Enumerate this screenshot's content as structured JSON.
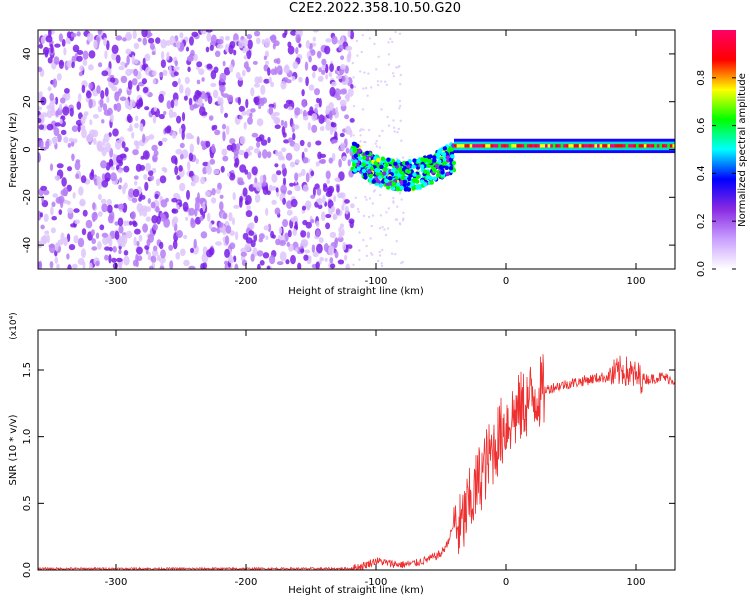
{
  "title": "C2E2.2022.358.10.50.G20",
  "chart_data": [
    {
      "type": "heatmap",
      "xlabel": "Height of straight line (km)",
      "ylabel": "Frequency (Hz)",
      "xlim": [
        -360,
        130
      ],
      "ylim": [
        -50,
        50
      ],
      "x_ticks": [
        -300,
        -200,
        -100,
        0,
        100
      ],
      "y_ticks": [
        -40,
        -20,
        0,
        20,
        40
      ],
      "colorbar": {
        "label": "Normalized spectral amplitude",
        "range": [
          0.0,
          1.0
        ],
        "ticks": [
          "0.0",
          "0.2",
          "0.4",
          "0.6",
          "0.8"
        ],
        "colors": [
          "#ffffff",
          "#c9a0ff",
          "#8a2be2",
          "#0000ff",
          "#00ffff",
          "#00ff00",
          "#ffff00",
          "#ff0000",
          "#ff0066"
        ]
      },
      "regions": [
        {
          "x": [
            -360,
            -118
          ],
          "freq": [
            -50,
            50
          ],
          "level": 0.1,
          "pattern": "noise"
        },
        {
          "x": [
            -118,
            -40
          ],
          "freq": [
            -12,
            5
          ],
          "level": 0.45,
          "pattern": "scattered signal"
        },
        {
          "x": [
            -40,
            130
          ],
          "freq": [
            0,
            3
          ],
          "level": 0.9,
          "pattern": "strong line"
        }
      ]
    },
    {
      "type": "line",
      "xlabel": "Height of straight line (km)",
      "ylabel": "SNR (10 * v/v)",
      "y_multiplier": "(x10⁴)",
      "xlim": [
        -360,
        130
      ],
      "ylim": [
        0,
        1.8
      ],
      "x_ticks": [
        -300,
        -200,
        -100,
        0,
        100
      ],
      "y_ticks": [
        "0.0",
        "0.5",
        "1.0",
        "1.5"
      ],
      "series_color": "#ee3030",
      "x": [
        -360,
        -300,
        -200,
        -120,
        -110,
        -100,
        -90,
        -80,
        -70,
        -60,
        -50,
        -45,
        -40,
        -35,
        -30,
        -25,
        -20,
        -15,
        -10,
        -5,
        0,
        10,
        20,
        30,
        40,
        50,
        60,
        70,
        80,
        90,
        100,
        110,
        120,
        130
      ],
      "y": [
        0.01,
        0.01,
        0.01,
        0.01,
        0.03,
        0.07,
        0.05,
        0.04,
        0.05,
        0.08,
        0.12,
        0.2,
        0.35,
        0.3,
        0.45,
        0.55,
        0.7,
        0.8,
        0.9,
        1.0,
        1.1,
        1.2,
        1.3,
        1.35,
        1.38,
        1.4,
        1.42,
        1.44,
        1.45,
        1.5,
        1.45,
        1.43,
        1.45,
        1.42
      ]
    }
  ]
}
